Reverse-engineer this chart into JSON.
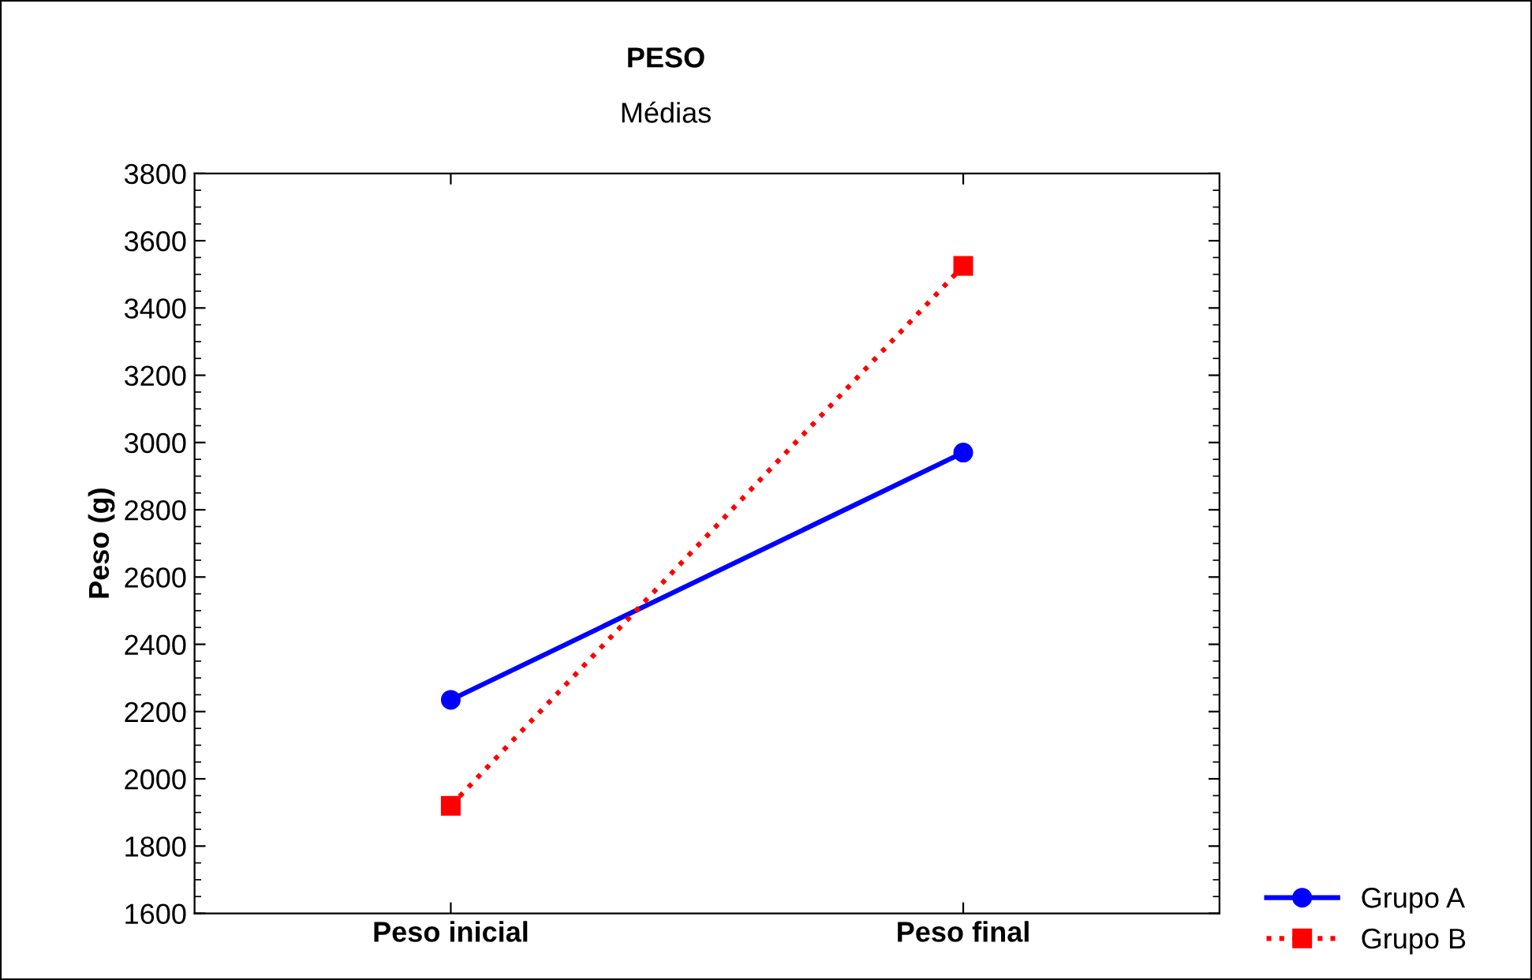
{
  "chart_data": {
    "type": "line",
    "title": "PESO",
    "subtitle": "Médias",
    "ylabel": "Peso (g)",
    "categories": [
      "Peso inicial",
      "Peso final"
    ],
    "series": [
      {
        "name": "Grupo A",
        "color": "#0000ff",
        "values": [
          2235,
          2970
        ],
        "marker": "circle",
        "line_style": "solid"
      },
      {
        "name": "Grupo B",
        "color": "#ff0000",
        "values": [
          1920,
          3525
        ],
        "marker": "square",
        "line_style": "dotted"
      }
    ],
    "ylim": [
      1600,
      3800
    ],
    "yticks": [
      1600,
      1800,
      2000,
      2200,
      2400,
      2600,
      2800,
      3000,
      3200,
      3400,
      3600,
      3800
    ],
    "grid": false,
    "legend": "bottom right"
  }
}
